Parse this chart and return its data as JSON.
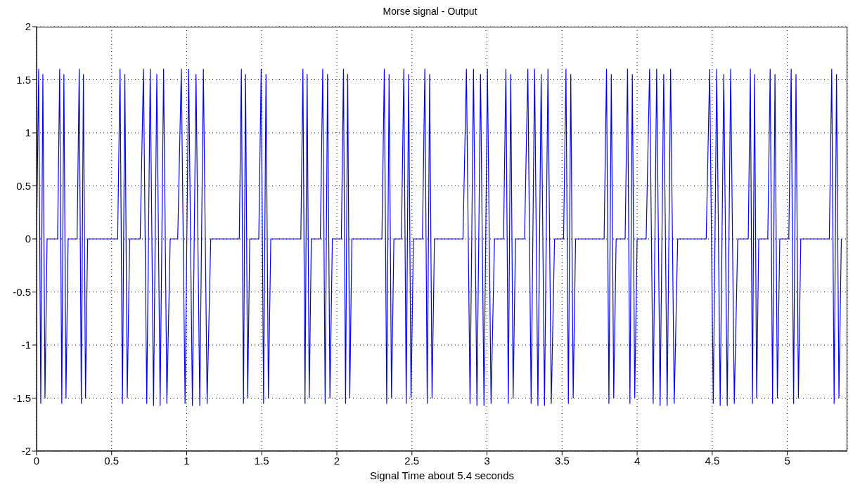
{
  "chart_data": {
    "type": "line",
    "title": "Morse signal - Output",
    "xlabel": "Signal Time about 5.4 seconds",
    "xlim": [
      0,
      5.4
    ],
    "xticks": [
      0,
      0.5,
      1,
      1.5,
      2,
      2.5,
      3,
      3.5,
      4,
      4.5,
      5
    ],
    "ylim": [
      -2,
      2
    ],
    "yticks": [
      -2,
      -1.5,
      -1,
      -0.5,
      0,
      0.5,
      1,
      1.5,
      2
    ],
    "grid": true,
    "series": [
      {
        "color": "#0000ff",
        "x": [
          0,
          0.014,
          0.028,
          0.042,
          0.056,
          0.07,
          0.14,
          0.154,
          0.168,
          0.182,
          0.196,
          0.21,
          0.27,
          0.284,
          0.298,
          0.312,
          0.326,
          0.34,
          0.54,
          0.556,
          0.572,
          0.588,
          0.604,
          0.62,
          0.69,
          0.712,
          0.734,
          0.757,
          0.779,
          0.801,
          0.823,
          0.846,
          0.868,
          0.89,
          0.94,
          0.964,
          0.989,
          1.013,
          1.038,
          1.062,
          1.087,
          1.111,
          1.136,
          1.16,
          1.35,
          1.364,
          1.378,
          1.392,
          1.406,
          1.42,
          1.48,
          1.496,
          1.512,
          1.528,
          1.544,
          1.56,
          1.76,
          1.774,
          1.788,
          1.802,
          1.816,
          1.83,
          1.89,
          1.906,
          1.922,
          1.938,
          1.954,
          1.97,
          2.03,
          2.044,
          2.058,
          2.072,
          2.086,
          2.1,
          2.3,
          2.316,
          2.332,
          2.348,
          2.364,
          2.38,
          2.43,
          2.446,
          2.462,
          2.478,
          2.494,
          2.51,
          2.57,
          2.586,
          2.602,
          2.618,
          2.634,
          2.65,
          2.84,
          2.863,
          2.887,
          2.91,
          2.933,
          2.957,
          2.98,
          3.003,
          3.027,
          3.05,
          3.11,
          3.126,
          3.142,
          3.158,
          3.174,
          3.19,
          3.25,
          3.272,
          3.294,
          3.317,
          3.339,
          3.361,
          3.383,
          3.406,
          3.428,
          3.45,
          3.51,
          3.526,
          3.542,
          3.558,
          3.574,
          3.59,
          3.78,
          3.796,
          3.812,
          3.828,
          3.844,
          3.86,
          3.92,
          3.936,
          3.952,
          3.968,
          3.984,
          4,
          4.06,
          4.083,
          4.107,
          4.13,
          4.153,
          4.177,
          4.2,
          4.223,
          4.247,
          4.27,
          4.46,
          4.483,
          4.507,
          4.53,
          4.553,
          4.577,
          4.6,
          4.623,
          4.647,
          4.67,
          4.74,
          4.754,
          4.768,
          4.782,
          4.796,
          4.81,
          4.87,
          4.886,
          4.902,
          4.918,
          4.934,
          4.95,
          5.01,
          5.026,
          5.042,
          5.058,
          5.074,
          5.09,
          5.28,
          5.296,
          5.312,
          5.328,
          5.344,
          5.36
        ],
        "values": [
          0,
          1.6,
          -1.55,
          1.55,
          -1.5,
          0,
          0,
          1.6,
          -1.55,
          1.55,
          -1.5,
          0,
          0,
          1.6,
          -1.55,
          1.55,
          -1.5,
          0,
          0,
          1.6,
          -1.55,
          1.55,
          -1.5,
          0,
          0,
          1.6,
          -1.55,
          1.6,
          -1.57,
          1.55,
          -1.57,
          1.6,
          -1.55,
          0,
          0,
          1.6,
          -1.55,
          1.6,
          -1.57,
          1.55,
          -1.57,
          1.6,
          -1.55,
          0,
          0,
          1.6,
          -1.55,
          1.55,
          -1.5,
          0,
          0,
          1.6,
          -1.55,
          1.55,
          -1.5,
          0,
          0,
          1.6,
          -1.55,
          1.55,
          -1.5,
          0,
          0,
          1.6,
          -1.55,
          1.55,
          -1.5,
          0,
          0,
          1.6,
          -1.55,
          1.55,
          -1.5,
          0,
          0,
          1.6,
          -1.55,
          1.55,
          -1.5,
          0,
          0,
          1.6,
          -1.55,
          1.55,
          -1.5,
          0,
          0,
          1.6,
          -1.55,
          1.55,
          -1.5,
          0,
          0,
          1.6,
          -1.55,
          1.6,
          -1.57,
          1.55,
          -1.57,
          1.6,
          -1.55,
          0,
          0,
          1.6,
          -1.55,
          1.55,
          -1.5,
          0,
          0,
          1.6,
          -1.55,
          1.6,
          -1.57,
          1.55,
          -1.57,
          1.6,
          -1.55,
          0,
          0,
          1.6,
          -1.55,
          1.55,
          -1.5,
          0,
          0,
          1.6,
          -1.55,
          1.55,
          -1.5,
          0,
          0,
          1.6,
          -1.55,
          1.55,
          -1.5,
          0,
          0,
          1.6,
          -1.55,
          1.6,
          -1.57,
          1.55,
          -1.57,
          1.6,
          -1.55,
          0,
          0,
          1.6,
          -1.55,
          1.6,
          -1.57,
          1.55,
          -1.57,
          1.6,
          -1.55,
          0,
          0,
          1.6,
          -1.55,
          1.55,
          -1.5,
          0,
          0,
          1.6,
          -1.55,
          1.55,
          -1.5,
          0,
          0,
          1.6,
          -1.55,
          1.55,
          -1.5,
          0,
          0,
          1.6,
          -1.55,
          1.55,
          -1.5,
          0
        ]
      }
    ]
  }
}
